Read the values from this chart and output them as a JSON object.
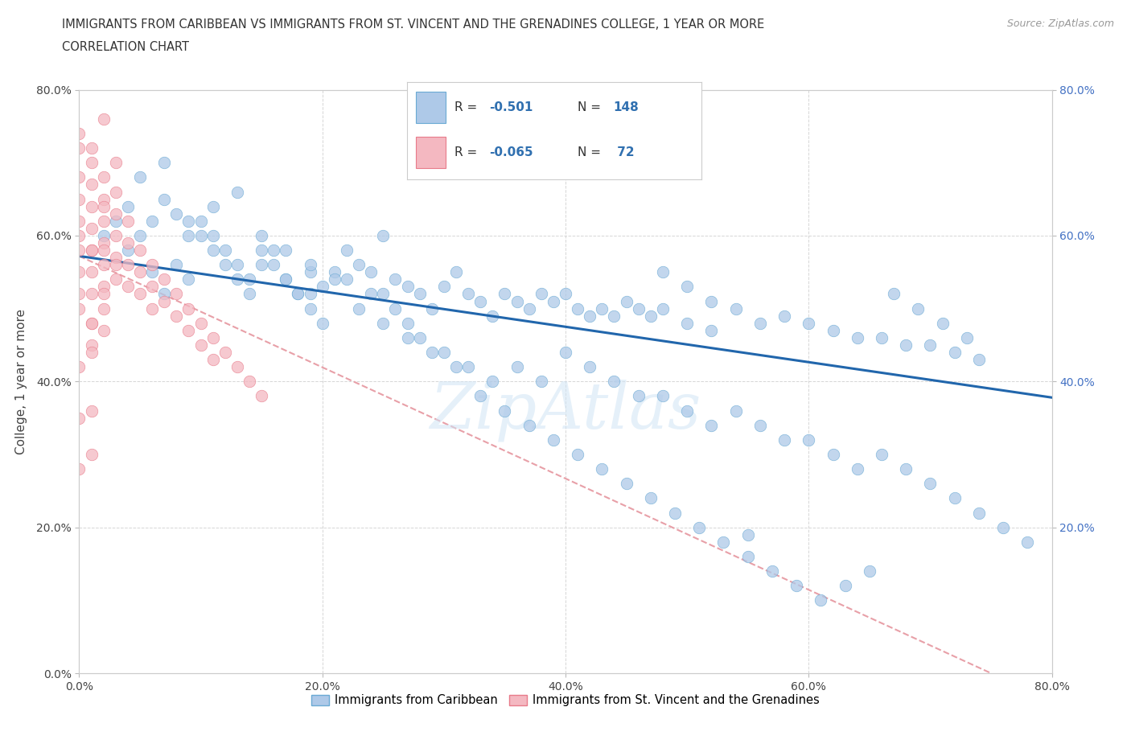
{
  "title_line1": "IMMIGRANTS FROM CARIBBEAN VS IMMIGRANTS FROM ST. VINCENT AND THE GRENADINES COLLEGE, 1 YEAR OR MORE",
  "title_line2": "CORRELATION CHART",
  "source_text": "Source: ZipAtlas.com",
  "ylabel": "College, 1 year or more",
  "xlim": [
    0.0,
    0.8
  ],
  "ylim": [
    0.0,
    0.8
  ],
  "xtick_values": [
    0.0,
    0.2,
    0.4,
    0.6,
    0.8
  ],
  "ytick_values": [
    0.0,
    0.2,
    0.4,
    0.6,
    0.8
  ],
  "right_ytick_values": [
    0.2,
    0.4,
    0.6,
    0.8
  ],
  "blue_color": "#aec9e8",
  "blue_edge": "#6aaad4",
  "pink_color": "#f4b8c1",
  "pink_edge": "#e87b8a",
  "trend_blue": "#2166ac",
  "trend_pink": "#e8a0a8",
  "blue_trendline_x": [
    0.0,
    0.8
  ],
  "blue_trendline_y": [
    0.572,
    0.378
  ],
  "pink_trendline_x": [
    0.0,
    0.75
  ],
  "pink_trendline_y": [
    0.572,
    0.0
  ],
  "watermark": "ZipAtlas",
  "background_color": "#ffffff",
  "grid_color": "#cccccc",
  "blue_scatter_x": [
    0.02,
    0.03,
    0.04,
    0.05,
    0.06,
    0.07,
    0.08,
    0.09,
    0.1,
    0.11,
    0.12,
    0.13,
    0.14,
    0.15,
    0.16,
    0.17,
    0.18,
    0.19,
    0.2,
    0.21,
    0.22,
    0.23,
    0.24,
    0.25,
    0.26,
    0.27,
    0.28,
    0.29,
    0.3,
    0.31,
    0.32,
    0.33,
    0.34,
    0.35,
    0.36,
    0.37,
    0.38,
    0.39,
    0.4,
    0.41,
    0.42,
    0.43,
    0.44,
    0.45,
    0.46,
    0.47,
    0.48,
    0.5,
    0.52,
    0.54,
    0.56,
    0.58,
    0.6,
    0.62,
    0.64,
    0.66,
    0.68,
    0.7,
    0.72,
    0.74,
    0.04,
    0.06,
    0.07,
    0.08,
    0.09,
    0.1,
    0.11,
    0.12,
    0.13,
    0.14,
    0.15,
    0.16,
    0.17,
    0.18,
    0.19,
    0.2,
    0.22,
    0.24,
    0.25,
    0.26,
    0.27,
    0.28,
    0.3,
    0.32,
    0.34,
    0.36,
    0.38,
    0.4,
    0.42,
    0.44,
    0.46,
    0.48,
    0.5,
    0.52,
    0.54,
    0.56,
    0.58,
    0.6,
    0.62,
    0.64,
    0.66,
    0.68,
    0.7,
    0.72,
    0.74,
    0.76,
    0.78,
    0.05,
    0.07,
    0.09,
    0.11,
    0.13,
    0.15,
    0.17,
    0.19,
    0.21,
    0.23,
    0.25,
    0.27,
    0.29,
    0.31,
    0.33,
    0.35,
    0.37,
    0.39,
    0.41,
    0.43,
    0.45,
    0.47,
    0.49,
    0.51,
    0.53,
    0.55,
    0.57,
    0.59,
    0.61,
    0.63,
    0.65,
    0.67,
    0.69,
    0.71,
    0.73,
    0.48,
    0.5,
    0.52,
    0.3,
    0.55,
    0.19
  ],
  "blue_scatter_y": [
    0.6,
    0.62,
    0.58,
    0.6,
    0.55,
    0.52,
    0.56,
    0.54,
    0.6,
    0.58,
    0.56,
    0.54,
    0.52,
    0.56,
    0.58,
    0.54,
    0.52,
    0.55,
    0.53,
    0.55,
    0.58,
    0.56,
    0.55,
    0.52,
    0.54,
    0.53,
    0.52,
    0.5,
    0.53,
    0.55,
    0.52,
    0.51,
    0.49,
    0.52,
    0.51,
    0.5,
    0.52,
    0.51,
    0.52,
    0.5,
    0.49,
    0.5,
    0.49,
    0.51,
    0.5,
    0.49,
    0.5,
    0.48,
    0.47,
    0.5,
    0.48,
    0.49,
    0.48,
    0.47,
    0.46,
    0.46,
    0.45,
    0.45,
    0.44,
    0.43,
    0.64,
    0.62,
    0.65,
    0.63,
    0.6,
    0.62,
    0.6,
    0.58,
    0.56,
    0.54,
    0.58,
    0.56,
    0.54,
    0.52,
    0.5,
    0.48,
    0.54,
    0.52,
    0.6,
    0.5,
    0.48,
    0.46,
    0.44,
    0.42,
    0.4,
    0.42,
    0.4,
    0.44,
    0.42,
    0.4,
    0.38,
    0.38,
    0.36,
    0.34,
    0.36,
    0.34,
    0.32,
    0.32,
    0.3,
    0.28,
    0.3,
    0.28,
    0.26,
    0.24,
    0.22,
    0.2,
    0.18,
    0.68,
    0.7,
    0.62,
    0.64,
    0.66,
    0.6,
    0.58,
    0.56,
    0.54,
    0.5,
    0.48,
    0.46,
    0.44,
    0.42,
    0.38,
    0.36,
    0.34,
    0.32,
    0.3,
    0.28,
    0.26,
    0.24,
    0.22,
    0.2,
    0.18,
    0.16,
    0.14,
    0.12,
    0.1,
    0.12,
    0.14,
    0.52,
    0.5,
    0.48,
    0.46,
    0.55,
    0.53,
    0.51,
    0.7,
    0.19,
    0.52
  ],
  "pink_scatter_x": [
    0.0,
    0.0,
    0.0,
    0.0,
    0.0,
    0.0,
    0.0,
    0.0,
    0.01,
    0.01,
    0.01,
    0.01,
    0.01,
    0.01,
    0.01,
    0.01,
    0.01,
    0.02,
    0.02,
    0.02,
    0.02,
    0.02,
    0.02,
    0.02,
    0.02,
    0.03,
    0.03,
    0.03,
    0.03,
    0.03,
    0.04,
    0.04,
    0.04,
    0.04,
    0.05,
    0.05,
    0.05,
    0.06,
    0.06,
    0.06,
    0.07,
    0.07,
    0.08,
    0.08,
    0.09,
    0.09,
    0.1,
    0.1,
    0.11,
    0.11,
    0.12,
    0.13,
    0.14,
    0.15,
    0.01,
    0.02,
    0.03,
    0.0,
    0.01,
    0.02,
    0.0,
    0.01,
    0.02,
    0.0,
    0.01,
    0.0,
    0.01,
    0.0,
    0.01,
    0.02,
    0.03
  ],
  "pink_scatter_y": [
    0.74,
    0.72,
    0.68,
    0.65,
    0.62,
    0.58,
    0.55,
    0.52,
    0.7,
    0.67,
    0.64,
    0.61,
    0.58,
    0.55,
    0.52,
    0.48,
    0.45,
    0.68,
    0.65,
    0.62,
    0.59,
    0.56,
    0.53,
    0.5,
    0.47,
    0.66,
    0.63,
    0.6,
    0.57,
    0.54,
    0.62,
    0.59,
    0.56,
    0.53,
    0.58,
    0.55,
    0.52,
    0.56,
    0.53,
    0.5,
    0.54,
    0.51,
    0.52,
    0.49,
    0.5,
    0.47,
    0.48,
    0.45,
    0.46,
    0.43,
    0.44,
    0.42,
    0.4,
    0.38,
    0.72,
    0.76,
    0.7,
    0.6,
    0.58,
    0.64,
    0.5,
    0.48,
    0.52,
    0.42,
    0.44,
    0.35,
    0.36,
    0.28,
    0.3,
    0.58,
    0.56
  ]
}
